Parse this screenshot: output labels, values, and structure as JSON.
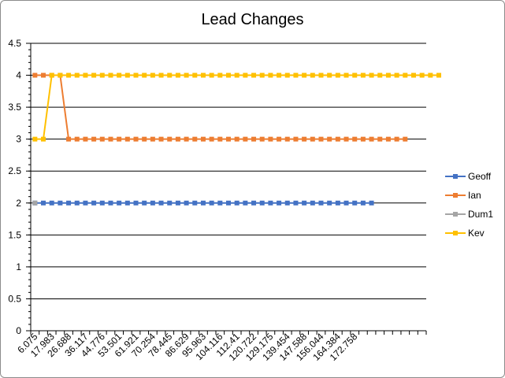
{
  "chart_data": {
    "type": "line",
    "title": "Lead Changes",
    "xlabel": "",
    "ylabel": "",
    "ylim": [
      0,
      4.5
    ],
    "yticks": [
      "0",
      "0.5",
      "1",
      "1.5",
      "2",
      "2.5",
      "3",
      "3.5",
      "4",
      "4.5"
    ],
    "x_tick_labels": [
      "6.075",
      "17.983",
      "26.688",
      "36.117",
      "44.776",
      "53.501",
      "61.921",
      "70.254",
      "78.445",
      "86.629",
      "95.963",
      "104.116",
      "112.41",
      "120.722",
      "129.175",
      "139.454",
      "147.588",
      "156.044",
      "164.384",
      "172.758"
    ],
    "categories_count": 47,
    "grid": true,
    "legend": "right",
    "series": [
      {
        "name": "Geoff",
        "color": "#4472c4",
        "values": [
          2,
          2,
          2,
          2,
          2,
          2,
          2,
          2,
          2,
          2,
          2,
          2,
          2,
          2,
          2,
          2,
          2,
          2,
          2,
          2,
          2,
          2,
          2,
          2,
          2,
          2,
          2,
          2,
          2,
          2,
          2,
          2,
          2,
          2,
          2,
          2,
          2,
          2,
          2,
          2,
          2
        ]
      },
      {
        "name": "Ian",
        "color": "#ed7d31",
        "values": [
          4,
          4,
          4,
          4,
          3,
          3,
          3,
          3,
          3,
          3,
          3,
          3,
          3,
          3,
          3,
          3,
          3,
          3,
          3,
          3,
          3,
          3,
          3,
          3,
          3,
          3,
          3,
          3,
          3,
          3,
          3,
          3,
          3,
          3,
          3,
          3,
          3,
          3,
          3,
          3,
          3,
          3,
          3,
          3,
          3
        ]
      },
      {
        "name": "Dum1",
        "color": "#a5a5a5",
        "values": [
          2
        ]
      },
      {
        "name": "Kev",
        "color": "#ffc000",
        "values": [
          3,
          3,
          4,
          4,
          4,
          4,
          4,
          4,
          4,
          4,
          4,
          4,
          4,
          4,
          4,
          4,
          4,
          4,
          4,
          4,
          4,
          4,
          4,
          4,
          4,
          4,
          4,
          4,
          4,
          4,
          4,
          4,
          4,
          4,
          4,
          4,
          4,
          4,
          4,
          4,
          4,
          4,
          4,
          4,
          4,
          4,
          4,
          4,
          4
        ]
      }
    ]
  }
}
